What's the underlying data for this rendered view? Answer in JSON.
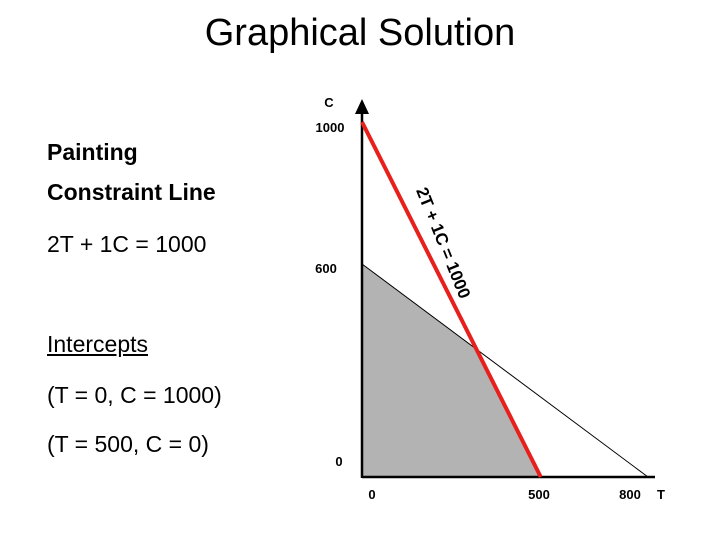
{
  "title": "Graphical Solution",
  "left_panel": {
    "heading_line1": "Painting",
    "heading_line2": "Constraint Line",
    "equation": "2T + 1C = 1000",
    "intercepts_heading": "Intercepts",
    "intercept_1": "(T = 0, C = 1000)",
    "intercept_2": "(T = 500, C = 0)"
  },
  "graph": {
    "y_axis_name": "C",
    "x_axis_name": "T",
    "y_ticks": [
      "1000",
      "600",
      "0"
    ],
    "x_ticks": [
      "0",
      "500",
      "800"
    ],
    "constraint_label": "2T + 1C = 1000",
    "colors": {
      "constraint_line": "#e8201c",
      "feasible_region": "#b3b3b3",
      "other_line": "#000000"
    },
    "constraint_line": {
      "t_intercept": 500,
      "c_intercept": 1000
    },
    "other_line": {
      "t_intercept": 800,
      "c_intercept": 600
    }
  }
}
